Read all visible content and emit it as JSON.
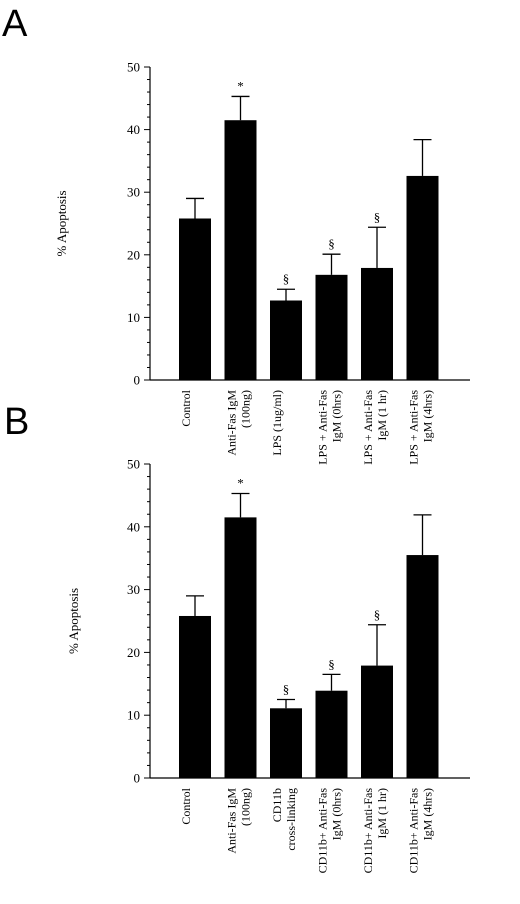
{
  "chart_data": [
    {
      "type": "bar",
      "panel": "A",
      "ylabel": "% Apoptosis",
      "ylim": [
        0,
        50
      ],
      "yticks": [
        0,
        10,
        20,
        30,
        40,
        50
      ],
      "categories": [
        [
          "Control"
        ],
        [
          "Anti-Fas IgM",
          "(100ng)"
        ],
        [
          "LPS (1ug/ml)"
        ],
        [
          "LPS + Anti-Fas",
          "IgM (0hrs)"
        ],
        [
          "LPS + Anti-Fas",
          "IgM (1 hr)"
        ],
        [
          "LPS + Anti-Fas",
          "IgM (4hrs)"
        ]
      ],
      "values": [
        25.8,
        41.5,
        12.7,
        16.8,
        17.9,
        32.6
      ],
      "errors": [
        3.2,
        3.8,
        1.8,
        3.3,
        6.5,
        5.8
      ],
      "markers": [
        "",
        "*",
        "§",
        "§",
        "§",
        ""
      ],
      "color": "#000000"
    },
    {
      "type": "bar",
      "panel": "B",
      "ylabel": "% Apoptosis",
      "ylim": [
        0,
        50
      ],
      "yticks": [
        0,
        10,
        20,
        30,
        40,
        50
      ],
      "categories": [
        [
          "Control"
        ],
        [
          "Anti-Fas IgM",
          "(100ng)"
        ],
        [
          "CD11b",
          "cross-linking"
        ],
        [
          "CD11b+ Anti-Fas",
          "IgM (0hrs)"
        ],
        [
          "CD11b+ Anti-Fas",
          "IgM (1 hr)"
        ],
        [
          "CD11b+ Anti-Fas",
          "IgM (4hrs)"
        ]
      ],
      "values": [
        25.8,
        41.5,
        11.1,
        13.9,
        17.9,
        35.5
      ],
      "errors": [
        3.2,
        3.8,
        1.4,
        2.6,
        6.5,
        6.4
      ],
      "markers": [
        "",
        "*",
        "§",
        "§",
        "§",
        ""
      ],
      "color": "#000000"
    }
  ]
}
